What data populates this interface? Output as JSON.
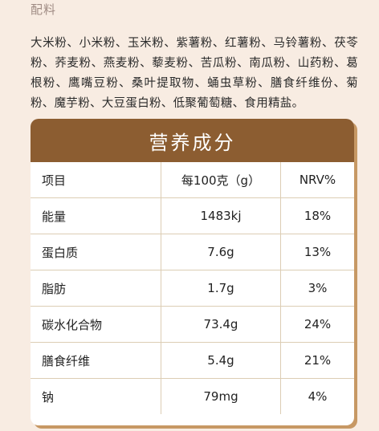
{
  "ingredients": {
    "title": "配料",
    "text": "大米粉、小米粉、玉米粉、紫薯粉、红薯粉、马铃薯粉、茯苓粉、荞麦粉、燕麦粉、藜麦粉、苦瓜粉、南瓜粉、山药粉、葛根粉、鹰嘴豆粉、桑叶提取物、蛹虫草粉、膳食纤维份、菊粉、魔芋粉、大豆蛋白粉、低聚葡萄糖、食用精盐。"
  },
  "nutrition": {
    "title": "营养成分",
    "headers": [
      "项目",
      "每100克（g）",
      "NRV%"
    ],
    "rows": [
      {
        "item": "能量",
        "per100g": "1483kj",
        "nrv": "18%"
      },
      {
        "item": "蛋白质",
        "per100g": "7.6g",
        "nrv": "13%"
      },
      {
        "item": "脂肪",
        "per100g": "1.7g",
        "nrv": "3%"
      },
      {
        "item": "碳水化合物",
        "per100g": "73.4g",
        "nrv": "24%"
      },
      {
        "item": "膳食纤维",
        "per100g": "5.4g",
        "nrv": "21%"
      },
      {
        "item": "钠",
        "per100g": "79mg",
        "nrv": "4%"
      }
    ]
  },
  "colors": {
    "background": "#f8ece2",
    "header": "#8c5d31",
    "card_shadow": "#c79864",
    "grid_line": "#dccdb4"
  }
}
